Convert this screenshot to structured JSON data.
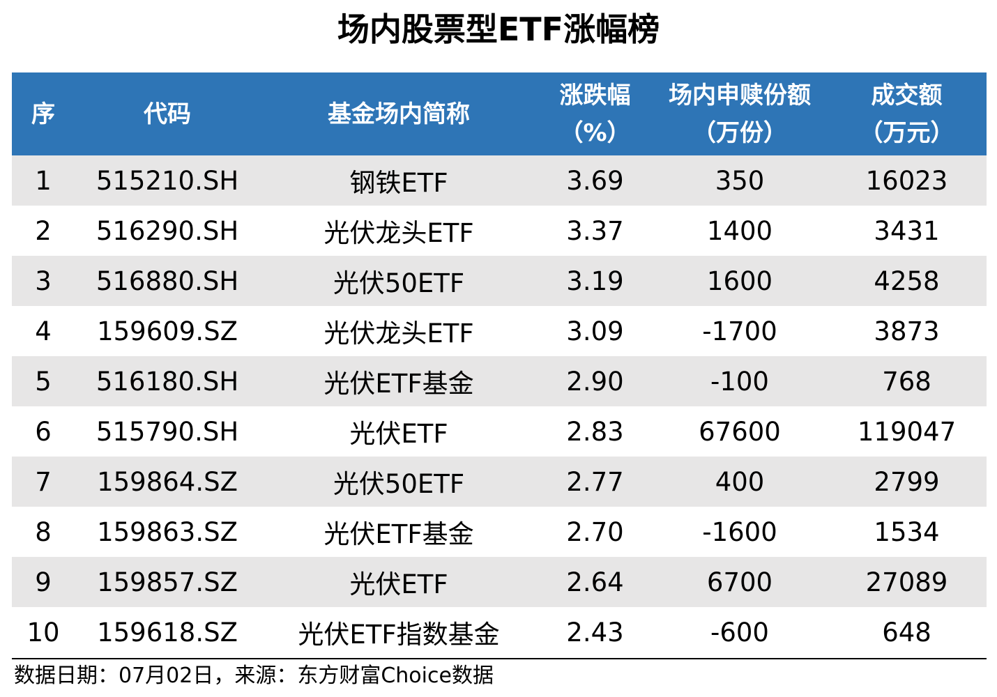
{
  "title": "场内股票型ETF涨幅榜",
  "header": {
    "rank": "序",
    "code": "代码",
    "name": "基金场内简称",
    "change_line1": "涨跌幅",
    "change_line2": "（%）",
    "flow_line1": "场内申赎份额",
    "flow_line2": "（万份）",
    "turnover_line1": "成交额",
    "turnover_line2": "（万元）"
  },
  "rows": [
    {
      "rank": "1",
      "code": "515210.SH",
      "name": "钢铁ETF",
      "change": "3.69",
      "flow": "350",
      "turnover": "16023"
    },
    {
      "rank": "2",
      "code": "516290.SH",
      "name": "光伏龙头ETF",
      "change": "3.37",
      "flow": "1400",
      "turnover": "3431"
    },
    {
      "rank": "3",
      "code": "516880.SH",
      "name": "光伏50ETF",
      "change": "3.19",
      "flow": "1600",
      "turnover": "4258"
    },
    {
      "rank": "4",
      "code": "159609.SZ",
      "name": "光伏龙头ETF",
      "change": "3.09",
      "flow": "-1700",
      "turnover": "3873"
    },
    {
      "rank": "5",
      "code": "516180.SH",
      "name": "光伏ETF基金",
      "change": "2.90",
      "flow": "-100",
      "turnover": "768"
    },
    {
      "rank": "6",
      "code": "515790.SH",
      "name": "光伏ETF",
      "change": "2.83",
      "flow": "67600",
      "turnover": "119047"
    },
    {
      "rank": "7",
      "code": "159864.SZ",
      "name": "光伏50ETF",
      "change": "2.77",
      "flow": "400",
      "turnover": "2799"
    },
    {
      "rank": "8",
      "code": "159863.SZ",
      "name": "光伏ETF基金",
      "change": "2.70",
      "flow": "-1600",
      "turnover": "1534"
    },
    {
      "rank": "9",
      "code": "159857.SZ",
      "name": "光伏ETF",
      "change": "2.64",
      "flow": "6700",
      "turnover": "27089"
    },
    {
      "rank": "10",
      "code": "159618.SZ",
      "name": "光伏ETF指数基金",
      "change": "2.43",
      "flow": "-600",
      "turnover": "648"
    }
  ],
  "footnote": "数据日期：07月02日，来源：东方财富Choice数据",
  "colors": {
    "header_bg": "#2e75b6",
    "header_text": "#ffffff",
    "shaded_row": "#e7e6e6"
  }
}
